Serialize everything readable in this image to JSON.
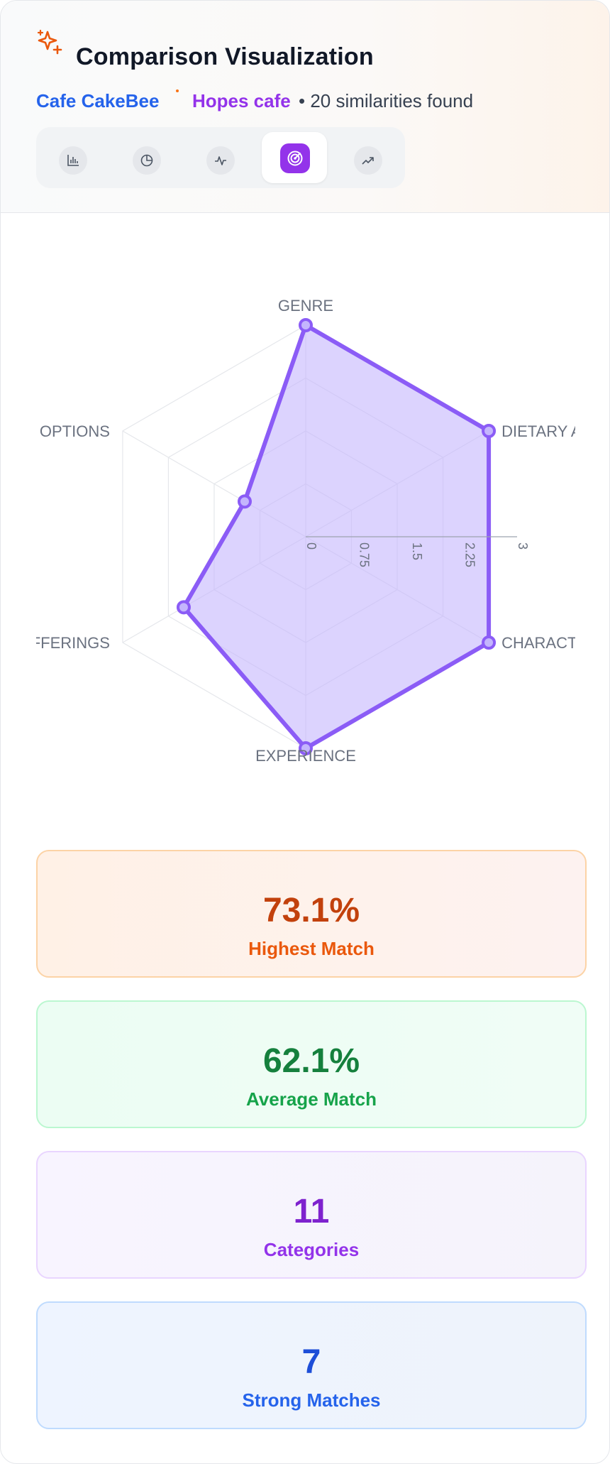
{
  "header": {
    "title": "Comparison Visualization",
    "subject_a": "Cafe CakeBee",
    "subject_b": "Hopes cafe",
    "summary": "• 20 similarities found"
  },
  "tabs": [
    {
      "name": "bar-chart",
      "icon": "bar-chart-icon",
      "active": false
    },
    {
      "name": "pie-chart",
      "icon": "pie-chart-icon",
      "active": false
    },
    {
      "name": "line-chart",
      "icon": "activity-icon",
      "active": false
    },
    {
      "name": "radar-chart",
      "icon": "radar-icon",
      "active": true
    },
    {
      "name": "trend-chart",
      "icon": "trending-up-icon",
      "active": false
    }
  ],
  "chart_data": {
    "type": "radar",
    "axes": [
      "GENRE",
      "DIETARY AC",
      "CHARACTE",
      "EXPERIENCE",
      "OFFERINGS",
      "G OPTIONS"
    ],
    "axis_labels_visible": [
      "GENRE",
      "DIETARY AC",
      "CHARACTE",
      "EXPERIENCE",
      "OFFERINGS",
      "G OPTIONS"
    ],
    "ticks": [
      "0",
      "0.75",
      "1.5",
      "2.25",
      "3"
    ],
    "range": [
      0,
      3
    ],
    "series": [
      {
        "values": [
          3.0,
          3.0,
          3.0,
          3.0,
          2.0,
          1.0
        ]
      }
    ],
    "colors": {
      "stroke": "#8b5cf6",
      "fill": "#c4b5fd"
    }
  },
  "stats": [
    {
      "value": "73.1%",
      "label": "Highest Match"
    },
    {
      "value": "62.1%",
      "label": "Average Match"
    },
    {
      "value": "11",
      "label": "Categories"
    },
    {
      "value": "7",
      "label": "Strong Matches"
    }
  ]
}
